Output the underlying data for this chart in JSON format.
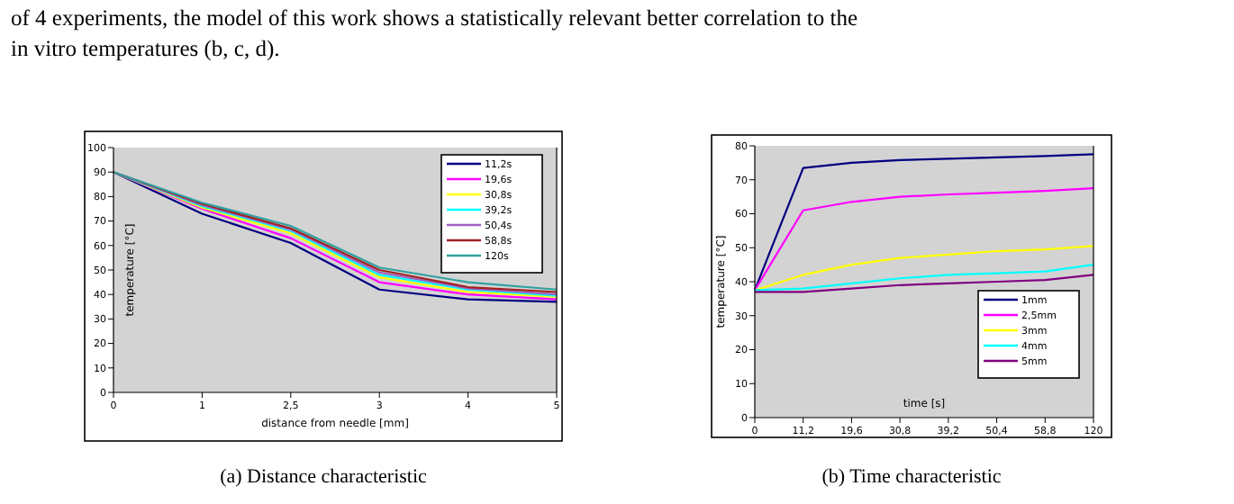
{
  "chart_data": [
    {
      "type": "line",
      "title": "(a) Distance characteristic",
      "xlabel": "distance from needle [mm]",
      "ylabel": "temperature [°C]",
      "annotations": [
        "of 4 experiments, the model of this work shows a statistically relevant better correlation to the in vitro temperatures (b, c, d)."
      ],
      "categories": [
        "0",
        "1",
        "2,5",
        "3",
        "4",
        "5"
      ],
      "ylim": [
        0,
        100
      ],
      "yticks": [
        0,
        10,
        20,
        30,
        40,
        50,
        60,
        70,
        80,
        90,
        100
      ],
      "grid": false,
      "legend": "top right",
      "series": [
        {
          "name": "11,2s",
          "color": "#000080",
          "values": [
            90,
            73,
            61,
            42,
            38,
            37
          ]
        },
        {
          "name": "19,6s",
          "color": "#ff00ff",
          "values": [
            90,
            75,
            63,
            45,
            40,
            38
          ]
        },
        {
          "name": "30,8s",
          "color": "#ffff00",
          "values": [
            90,
            75.5,
            65,
            47,
            41,
            39
          ]
        },
        {
          "name": "39,2s",
          "color": "#00ffff",
          "values": [
            90,
            76,
            66,
            48,
            42,
            39.5
          ]
        },
        {
          "name": "50,4s",
          "color": "#a060c0",
          "values": [
            90,
            76.5,
            66.5,
            49,
            42.5,
            40
          ]
        },
        {
          "name": "58,8s",
          "color": "#a02020",
          "values": [
            90,
            77,
            67,
            50,
            43,
            41
          ]
        },
        {
          "name": "120s",
          "color": "#30a0a0",
          "values": [
            90,
            77.5,
            68,
            51,
            45,
            42
          ]
        }
      ]
    },
    {
      "type": "line",
      "title": "(b) Time characteristic",
      "xlabel": "time [s]",
      "ylabel": "temperature [°C]",
      "categories": [
        "0",
        "11,2",
        "19,6",
        "30,8",
        "39,2",
        "50,4",
        "58,8",
        "120"
      ],
      "ylim": [
        0,
        80
      ],
      "yticks": [
        0,
        10,
        20,
        30,
        40,
        50,
        60,
        70,
        80
      ],
      "grid": false,
      "legend": "bottom right",
      "series": [
        {
          "name": "1mm",
          "color": "#000080",
          "values": [
            37.5,
            73.5,
            75,
            75.8,
            76.2,
            76.6,
            77,
            77.5
          ]
        },
        {
          "name": "2,5mm",
          "color": "#ff00ff",
          "values": [
            37.5,
            61,
            63.5,
            65,
            65.7,
            66.2,
            66.7,
            67.5
          ]
        },
        {
          "name": "3mm",
          "color": "#ffff00",
          "values": [
            37.5,
            42,
            45,
            47,
            48,
            49,
            49.5,
            50.5
          ]
        },
        {
          "name": "4mm",
          "color": "#00ffff",
          "values": [
            37.5,
            38,
            39.5,
            41,
            42,
            42.5,
            43,
            45
          ]
        },
        {
          "name": "5mm",
          "color": "#800080",
          "values": [
            37,
            37,
            38,
            39,
            39.5,
            40,
            40.5,
            42
          ]
        }
      ]
    }
  ]
}
